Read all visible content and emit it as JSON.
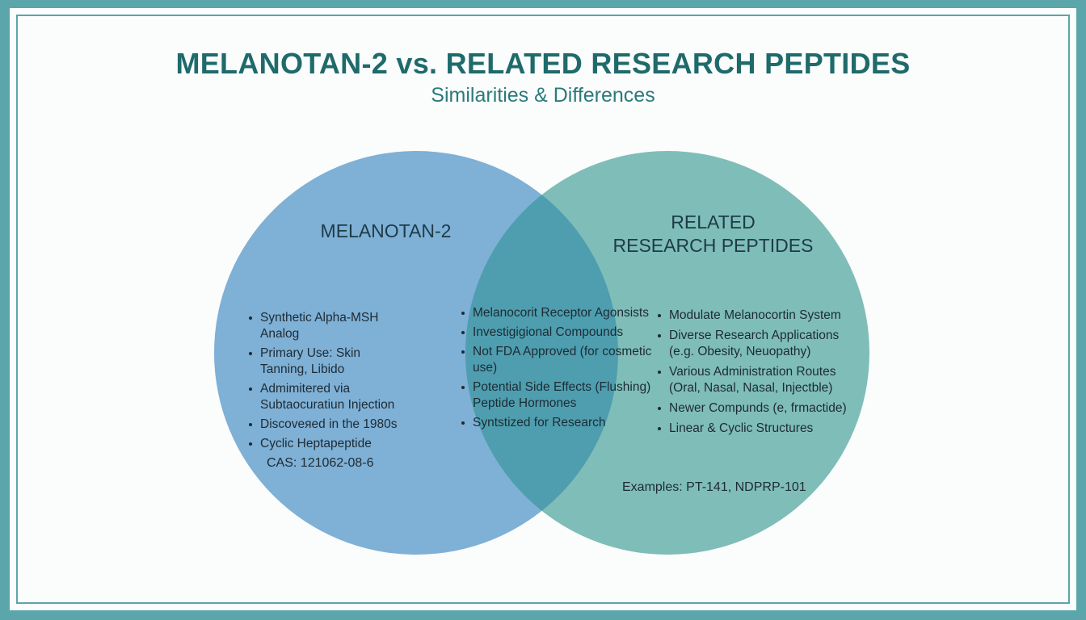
{
  "title": "MELANOTAN-2 vs. RELATED RESEARCH PEPTIDES",
  "subtitle": "Similarities & Differences",
  "colors": {
    "left_circle": "#7fb0d6",
    "right_circle": "#7fbdb8",
    "overlap": "#4e9eaf",
    "frame": "#5aa6ab"
  },
  "left": {
    "heading": "MELANOTAN-2",
    "items": [
      "Synthetic Alpha-MSH Analog",
      "Primary Use: Skin Tanning, Libido",
      "Admimitered via Subtaocuratiun Injection",
      "Discoveяed in the 1980s",
      "Cyclic Heptapeptide"
    ],
    "footnote": "CAS: 121062-08-6"
  },
  "overlap": {
    "items": [
      "Melanocorit Receptor Agonsists",
      "Investigigional Compounds",
      "Not FDA Approved (for cosmetic use)",
      "Potential Side Effects (Flushing) Peptide Hormones",
      "Syntstized for Research"
    ]
  },
  "right": {
    "heading_line1": "RELATED",
    "heading_line2": "RESEARCH PEPTIDES",
    "items": [
      "Modulate Melanocortin System",
      "Diverse Research Applications (e.g. Obesity, Neuopathy)",
      "Various Administration Routes (Oral, Nasal, Nasal, Injectble)",
      "Newer Compunds (e, frmactide)",
      "Linear & Cyclic Structures"
    ],
    "footnote": "Examples: PT-141, NDPRP-101"
  }
}
